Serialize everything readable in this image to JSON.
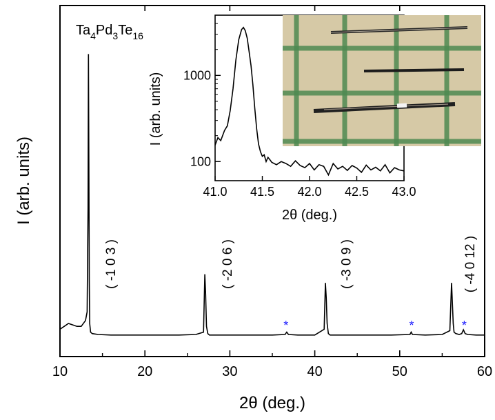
{
  "chart_data": [
    {
      "type": "line",
      "title": "",
      "xlabel": "2θ (deg.)",
      "ylabel": "I (arb. units)",
      "xlim": [
        10,
        60
      ],
      "ylim": [
        0,
        1
      ],
      "xticks": [
        "10",
        "20",
        "30",
        "40",
        "50",
        "60"
      ],
      "yticks_shown": false,
      "grid": false,
      "formula": {
        "base1": "Ta",
        "sub1": "4",
        "base2": "Pd",
        "sub2": "3",
        "base3": "Te",
        "sub3": "16"
      },
      "series": [
        {
          "x": [
            10.0,
            10.5,
            11.0,
            11.5,
            12.0,
            12.5,
            13.0,
            13.2,
            13.3,
            13.35,
            13.4,
            13.45,
            13.5,
            13.6,
            13.8,
            14.5,
            16,
            18,
            20,
            22,
            24,
            26,
            26.9,
            27.05,
            27.15,
            27.25,
            27.4,
            27.6,
            29,
            32,
            35,
            36.5,
            36.7,
            36.9,
            38,
            40,
            41.1,
            41.25,
            41.35,
            41.45,
            41.6,
            41.8,
            43,
            46,
            49,
            51.2,
            51.35,
            51.5,
            53,
            55,
            55.9,
            56.1,
            56.2,
            56.3,
            56.4,
            56.6,
            57.0,
            57.3,
            57.5,
            57.7,
            58.0,
            59,
            60
          ],
          "y": [
            0.03,
            0.04,
            0.05,
            0.045,
            0.04,
            0.04,
            0.06,
            0.09,
            0.45,
            0.98,
            0.6,
            0.2,
            0.05,
            0.02,
            0.015,
            0.012,
            0.01,
            0.01,
            0.01,
            0.01,
            0.01,
            0.012,
            0.02,
            0.22,
            0.15,
            0.04,
            0.015,
            0.01,
            0.01,
            0.01,
            0.01,
            0.012,
            0.02,
            0.012,
            0.01,
            0.01,
            0.03,
            0.19,
            0.14,
            0.05,
            0.015,
            0.01,
            0.01,
            0.01,
            0.01,
            0.012,
            0.02,
            0.012,
            0.01,
            0.012,
            0.025,
            0.19,
            0.12,
            0.05,
            0.02,
            0.015,
            0.012,
            0.015,
            0.028,
            0.015,
            0.012,
            0.01,
            0.01
          ]
        }
      ],
      "annotations": [
        {
          "label": "( -1 0 3 )",
          "x": 16.5
        },
        {
          "label": "( -2 0 6 )",
          "x": 30.2
        },
        {
          "label": "( -3 0 9 )",
          "x": 44.2
        },
        {
          "label": "( -4 0 12 )",
          "x": 58.8
        }
      ],
      "impurity_markers": [
        {
          "label": "*",
          "x": 36.6
        },
        {
          "label": "*",
          "x": 51.4
        },
        {
          "label": "*",
          "x": 57.6
        }
      ],
      "marker_color": "#1a1aff",
      "line_color": "#000000"
    },
    {
      "type": "line",
      "title": "",
      "inset": true,
      "xlabel": "2θ (deg.)",
      "ylabel": "I (arb. units)",
      "xlim": [
        41.0,
        43.0
      ],
      "ylim": [
        60,
        5000
      ],
      "yscale": "log",
      "xticks": [
        "41.0",
        "41.5",
        "42.0",
        "42.5",
        "43.0"
      ],
      "yticks": [
        "100",
        "1000"
      ],
      "grid": false,
      "series": [
        {
          "x": [
            41.0,
            41.03,
            41.06,
            41.1,
            41.13,
            41.16,
            41.19,
            41.22,
            41.25,
            41.28,
            41.3,
            41.32,
            41.34,
            41.36,
            41.38,
            41.4,
            41.42,
            41.44,
            41.46,
            41.48,
            41.5,
            41.52,
            41.54,
            41.56,
            41.58,
            41.6,
            41.65,
            41.7,
            41.75,
            41.8,
            41.85,
            41.9,
            41.95,
            42.0,
            42.05,
            42.1,
            42.15,
            42.2,
            42.25,
            42.3,
            42.35,
            42.4,
            42.45,
            42.5,
            42.55,
            42.6,
            42.65,
            42.7,
            42.75,
            42.8,
            42.85,
            42.9,
            42.95,
            43.0
          ],
          "y": [
            155,
            190,
            175,
            230,
            260,
            390,
            700,
            1500,
            2600,
            3400,
            3600,
            3300,
            2700,
            1900,
            1300,
            780,
            420,
            240,
            160,
            130,
            115,
            120,
            100,
            112,
            105,
            98,
            92,
            100,
            95,
            88,
            102,
            90,
            85,
            95,
            80,
            92,
            88,
            70,
            95,
            82,
            88,
            79,
            90,
            84,
            75,
            91,
            80,
            86,
            78,
            92,
            74,
            85,
            80,
            78
          ]
        }
      ],
      "line_color": "#000000"
    }
  ],
  "photo": {
    "description_icon": "crystal-photo",
    "grid_color": "#4f8a52",
    "paper_color": "#d6c9a6"
  }
}
